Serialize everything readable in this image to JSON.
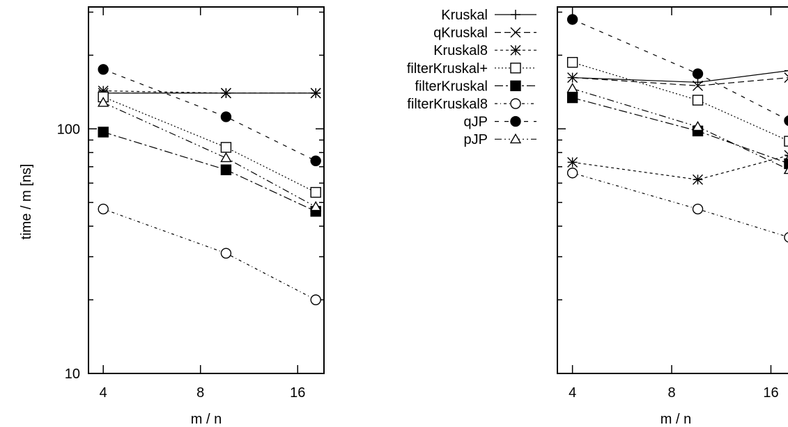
{
  "chart_data": [
    {
      "type": "line",
      "xlabel": "m / n",
      "ylabel": "time / m [ns]",
      "x_scale": "log",
      "y_scale": "log",
      "xlim": [
        3.6,
        19.3
      ],
      "ylim": [
        10,
        315
      ],
      "x_ticks": [
        4,
        8,
        16
      ],
      "y_ticks": [
        10,
        100
      ],
      "x": [
        4,
        9.6,
        18.2
      ],
      "series": [
        {
          "name": "Kruskal",
          "values": [
            140,
            140,
            140
          ]
        },
        {
          "name": "qKruskal",
          "values": [
            140,
            140,
            140
          ]
        },
        {
          "name": "Kruskal8",
          "values": [
            143,
            140,
            140
          ]
        },
        {
          "name": "filterKruskal+",
          "values": [
            135,
            84,
            55
          ]
        },
        {
          "name": "filterKruskal",
          "values": [
            97,
            68,
            46
          ]
        },
        {
          "name": "filterKruskal8",
          "values": [
            47,
            31,
            20
          ]
        },
        {
          "name": "qJP",
          "values": [
            175,
            112,
            74
          ]
        },
        {
          "name": "pJP",
          "values": [
            128,
            76,
            48
          ]
        }
      ]
    },
    {
      "type": "line",
      "xlabel": "m / n",
      "x_scale": "log",
      "y_scale": "log",
      "xlim": [
        3.6,
        19.3
      ],
      "ylim": [
        10,
        315
      ],
      "x_ticks": [
        4,
        8,
        16
      ],
      "x": [
        4,
        9.6,
        18.2
      ],
      "series": [
        {
          "name": "Kruskal",
          "values": [
            162,
            155,
            173
          ]
        },
        {
          "name": "qKruskal",
          "values": [
            162,
            150,
            162
          ]
        },
        {
          "name": "Kruskal8",
          "values": [
            73,
            62,
            78
          ]
        },
        {
          "name": "filterKruskal+",
          "values": [
            187,
            131,
            89
          ]
        },
        {
          "name": "filterKruskal",
          "values": [
            134,
            98,
            72
          ]
        },
        {
          "name": "filterKruskal8",
          "values": [
            66,
            47,
            36
          ]
        },
        {
          "name": "qJP",
          "values": [
            280,
            168,
            108
          ]
        },
        {
          "name": "pJP",
          "values": [
            146,
            102,
            68
          ]
        }
      ]
    }
  ],
  "legend": [
    {
      "label": "Kruskal",
      "dash": "",
      "marker": "plus"
    },
    {
      "label": "qKruskal",
      "dash": "9,5",
      "marker": "cross"
    },
    {
      "label": "Kruskal8",
      "dash": "4,4",
      "marker": "star"
    },
    {
      "label": "filterKruskal+",
      "dash": "2,3",
      "marker": "square-open"
    },
    {
      "label": "filterKruskal",
      "dash": "12,4,3,4",
      "marker": "square-filled"
    },
    {
      "label": "filterKruskal8",
      "dash": "4,4,1,4",
      "marker": "circle-open"
    },
    {
      "label": "qJP",
      "dash": "6,8",
      "marker": "circle-filled"
    },
    {
      "label": "pJP",
      "dash": "10,4,2,4,2,4",
      "marker": "triangle-open"
    }
  ]
}
